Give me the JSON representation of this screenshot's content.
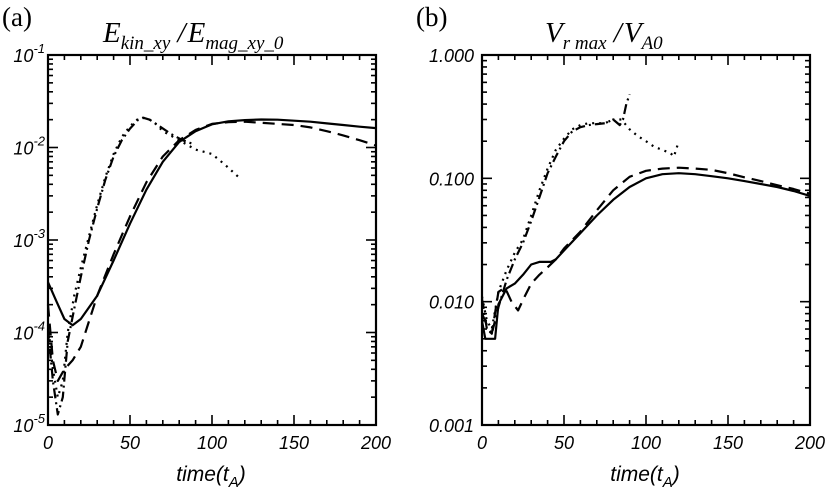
{
  "chart_data": [
    {
      "type": "line",
      "panel_label": "(a)",
      "title": "E_kin_xy / E_mag_xy_0",
      "title_parts": {
        "E1": "E",
        "sub1": "kin_xy",
        "slash": " /",
        "E2": "E",
        "sub2": "mag_xy_0"
      },
      "xlabel": "time(t_A)",
      "xlabel_parts": {
        "main": "time(t",
        "sub": "A",
        "close": ")"
      },
      "ylabel": "",
      "yscale": "log",
      "xlim": [
        0,
        200
      ],
      "ylim": [
        1e-05,
        0.1
      ],
      "grid": false,
      "x_ticks": [
        {
          "value": 0,
          "label": "0"
        },
        {
          "value": 50,
          "label": "50"
        },
        {
          "value": 100,
          "label": "100"
        },
        {
          "value": 150,
          "label": "150"
        },
        {
          "value": 200,
          "label": "200"
        }
      ],
      "y_ticks": [
        {
          "value": 1e-05,
          "base": "10",
          "exp": "-5"
        },
        {
          "value": 0.0001,
          "base": "10",
          "exp": "-4"
        },
        {
          "value": 0.001,
          "base": "10",
          "exp": "-3"
        },
        {
          "value": 0.01,
          "base": "10",
          "exp": "-2"
        },
        {
          "value": 0.1,
          "base": "10",
          "exp": "-1"
        }
      ],
      "series": [
        {
          "name": "solid",
          "style": "solid",
          "points": [
            [
              0,
              0.00035
            ],
            [
              5,
              0.00022
            ],
            [
              10,
              0.00014
            ],
            [
              15,
              0.00012
            ],
            [
              20,
              0.00014
            ],
            [
              30,
              0.00025
            ],
            [
              40,
              0.0006
            ],
            [
              50,
              0.0015
            ],
            [
              60,
              0.0035
            ],
            [
              70,
              0.007
            ],
            [
              80,
              0.0115
            ],
            [
              90,
              0.015
            ],
            [
              100,
              0.0178
            ],
            [
              110,
              0.0192
            ],
            [
              120,
              0.0198
            ],
            [
              130,
              0.0201
            ],
            [
              140,
              0.02
            ],
            [
              150,
              0.0195
            ],
            [
              160,
              0.019
            ],
            [
              170,
              0.0182
            ],
            [
              180,
              0.0175
            ],
            [
              190,
              0.0168
            ],
            [
              200,
              0.0162
            ]
          ]
        },
        {
          "name": "dashed",
          "style": "dashed",
          "points": [
            [
              0,
              0.0002
            ],
            [
              3,
              5e-05
            ],
            [
              6,
              3e-05
            ],
            [
              10,
              4e-05
            ],
            [
              15,
              5e-05
            ],
            [
              20,
              7e-05
            ],
            [
              30,
              0.00025
            ],
            [
              40,
              0.0007
            ],
            [
              50,
              0.0018
            ],
            [
              60,
              0.0042
            ],
            [
              70,
              0.008
            ],
            [
              80,
              0.012
            ],
            [
              90,
              0.0155
            ],
            [
              100,
              0.018
            ],
            [
              110,
              0.0188
            ],
            [
              120,
              0.019
            ],
            [
              130,
              0.0185
            ],
            [
              140,
              0.018
            ],
            [
              150,
              0.0175
            ],
            [
              160,
              0.0165
            ],
            [
              170,
              0.015
            ],
            [
              180,
              0.0135
            ],
            [
              190,
              0.012
            ],
            [
              200,
              0.0105
            ]
          ]
        },
        {
          "name": "dash-dot",
          "style": "dashdot",
          "points": [
            [
              0,
              0.00011
            ],
            [
              3,
              3e-05
            ],
            [
              6,
              1.3e-05
            ],
            [
              9,
              2e-05
            ],
            [
              12,
              8e-05
            ],
            [
              16,
              0.00018
            ],
            [
              20,
              0.0004
            ],
            [
              25,
              0.001
            ],
            [
              30,
              0.0022
            ],
            [
              35,
              0.0045
            ],
            [
              40,
              0.008
            ],
            [
              45,
              0.012
            ],
            [
              50,
              0.016
            ],
            [
              55,
              0.02
            ],
            [
              58,
              0.021
            ],
            [
              62,
              0.02
            ],
            [
              68,
              0.017
            ],
            [
              75,
              0.014
            ],
            [
              82,
              0.012
            ],
            [
              88,
              0.011
            ]
          ]
        },
        {
          "name": "dotted",
          "style": "dotted",
          "points": [
            [
              0,
              0.00012
            ],
            [
              3,
              4e-05
            ],
            [
              6,
              2e-05
            ],
            [
              9,
              3e-05
            ],
            [
              12,
              0.0001
            ],
            [
              16,
              0.00025
            ],
            [
              20,
              0.0005
            ],
            [
              25,
              0.0011
            ],
            [
              30,
              0.0024
            ],
            [
              35,
              0.0048
            ],
            [
              40,
              0.0085
            ],
            [
              45,
              0.013
            ],
            [
              50,
              0.017
            ],
            [
              55,
              0.0205
            ],
            [
              60,
              0.021
            ],
            [
              65,
              0.0185
            ],
            [
              70,
              0.015
            ],
            [
              80,
              0.012
            ],
            [
              90,
              0.0095
            ],
            [
              100,
              0.0085
            ],
            [
              108,
              0.0065
            ],
            [
              115,
              0.005
            ],
            [
              118,
              0.0045
            ]
          ]
        }
      ]
    },
    {
      "type": "line",
      "panel_label": "(b)",
      "title": "V_r max / V_A0",
      "title_parts": {
        "V1": "V",
        "sub1": "r max",
        "slash": " /",
        "V2": "V",
        "sub2": "A0"
      },
      "xlabel": "time(t_A)",
      "xlabel_parts": {
        "main": "time(t",
        "sub": "A",
        "close": ")"
      },
      "ylabel": "",
      "yscale": "log",
      "xlim": [
        0,
        200
      ],
      "ylim": [
        0.001,
        1.0
      ],
      "grid": false,
      "x_ticks": [
        {
          "value": 0,
          "label": "0"
        },
        {
          "value": 50,
          "label": "50"
        },
        {
          "value": 100,
          "label": "100"
        },
        {
          "value": 150,
          "label": "150"
        },
        {
          "value": 200,
          "label": "200"
        }
      ],
      "y_ticks": [
        {
          "value": 0.001,
          "label": "0.001"
        },
        {
          "value": 0.01,
          "label": "0.010"
        },
        {
          "value": 0.1,
          "label": "0.100"
        },
        {
          "value": 1.0,
          "label": "1.000"
        }
      ],
      "series": [
        {
          "name": "solid",
          "style": "solid",
          "points": [
            [
              0,
              0.007
            ],
            [
              2,
              0.005
            ],
            [
              8,
              0.005
            ],
            [
              10,
              0.0095
            ],
            [
              15,
              0.0128
            ],
            [
              20,
              0.014
            ],
            [
              25,
              0.0165
            ],
            [
              30,
              0.02
            ],
            [
              35,
              0.021
            ],
            [
              42,
              0.021
            ],
            [
              45,
              0.022
            ],
            [
              50,
              0.026
            ],
            [
              60,
              0.036
            ],
            [
              70,
              0.05
            ],
            [
              80,
              0.067
            ],
            [
              90,
              0.085
            ],
            [
              100,
              0.1
            ],
            [
              110,
              0.108
            ],
            [
              120,
              0.11
            ],
            [
              130,
              0.108
            ],
            [
              140,
              0.104
            ],
            [
              150,
              0.1
            ],
            [
              160,
              0.095
            ],
            [
              170,
              0.09
            ],
            [
              180,
              0.085
            ],
            [
              190,
              0.079
            ],
            [
              200,
              0.072
            ]
          ]
        },
        {
          "name": "dashed",
          "style": "dashed",
          "points": [
            [
              0,
              0.008
            ],
            [
              4,
              0.006
            ],
            [
              6,
              0.0055
            ],
            [
              10,
              0.012
            ],
            [
              14,
              0.013
            ],
            [
              18,
              0.01
            ],
            [
              22,
              0.0085
            ],
            [
              26,
              0.011
            ],
            [
              30,
              0.014
            ],
            [
              35,
              0.0165
            ],
            [
              40,
              0.019
            ],
            [
              45,
              0.022
            ],
            [
              50,
              0.027
            ],
            [
              60,
              0.037
            ],
            [
              70,
              0.055
            ],
            [
              80,
              0.08
            ],
            [
              90,
              0.103
            ],
            [
              100,
              0.115
            ],
            [
              110,
              0.12
            ],
            [
              120,
              0.122
            ],
            [
              130,
              0.12
            ],
            [
              140,
              0.117
            ],
            [
              150,
              0.11
            ],
            [
              160,
              0.102
            ],
            [
              170,
              0.095
            ],
            [
              180,
              0.088
            ],
            [
              190,
              0.082
            ],
            [
              200,
              0.075
            ]
          ]
        },
        {
          "name": "dash-dot",
          "style": "dashdot",
          "points": [
            [
              0,
              0.0105
            ],
            [
              3,
              0.006
            ],
            [
              6,
              0.0055
            ],
            [
              10,
              0.009
            ],
            [
              15,
              0.015
            ],
            [
              20,
              0.022
            ],
            [
              25,
              0.03
            ],
            [
              30,
              0.045
            ],
            [
              35,
              0.07
            ],
            [
              40,
              0.11
            ],
            [
              45,
              0.15
            ],
            [
              50,
              0.2
            ],
            [
              55,
              0.24
            ],
            [
              60,
              0.26
            ],
            [
              65,
              0.27
            ],
            [
              70,
              0.275
            ],
            [
              75,
              0.28
            ],
            [
              80,
              0.3
            ],
            [
              84,
              0.27
            ],
            [
              86,
              0.3
            ],
            [
              88,
              0.4
            ],
            [
              90,
              0.48
            ]
          ]
        },
        {
          "name": "dotted",
          "style": "dotted",
          "points": [
            [
              0,
              0.011
            ],
            [
              3,
              0.007
            ],
            [
              6,
              0.006
            ],
            [
              10,
              0.012
            ],
            [
              15,
              0.018
            ],
            [
              20,
              0.025
            ],
            [
              25,
              0.032
            ],
            [
              30,
              0.05
            ],
            [
              35,
              0.08
            ],
            [
              40,
              0.12
            ],
            [
              45,
              0.17
            ],
            [
              50,
              0.21
            ],
            [
              55,
              0.25
            ],
            [
              60,
              0.27
            ],
            [
              65,
              0.28
            ],
            [
              70,
              0.28
            ],
            [
              75,
              0.28
            ],
            [
              80,
              0.3
            ],
            [
              85,
              0.3
            ],
            [
              90,
              0.25
            ],
            [
              95,
              0.22
            ],
            [
              100,
              0.2
            ],
            [
              105,
              0.18
            ],
            [
              110,
              0.17
            ],
            [
              115,
              0.16
            ],
            [
              117,
              0.15
            ],
            [
              120,
              0.2
            ]
          ]
        }
      ]
    }
  ]
}
